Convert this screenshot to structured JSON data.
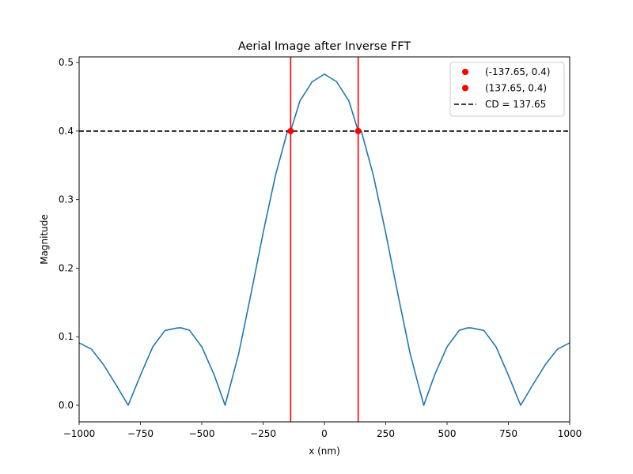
{
  "chart_data": {
    "type": "line",
    "title": "Aerial Image after Inverse FFT",
    "xlabel": "x (nm)",
    "ylabel": "Magnitude",
    "xlim": [
      -1000,
      1000
    ],
    "ylim": [
      -0.0242,
      0.5082
    ],
    "xticks": [
      -1000,
      -750,
      -500,
      -250,
      0,
      250,
      500,
      750,
      1000
    ],
    "xtick_labels": [
      "−1000",
      "−750",
      "−500",
      "−250",
      "0",
      "250",
      "500",
      "750",
      "1000"
    ],
    "yticks": [
      0.0,
      0.1,
      0.2,
      0.3,
      0.4,
      0.5
    ],
    "ytick_labels": [
      "0.0",
      "0.1",
      "0.2",
      "0.3",
      "0.4",
      "0.5"
    ],
    "grid": false,
    "legend_position": "top-right",
    "series": [
      {
        "kind": "line",
        "color": "#1f77b4",
        "x": [
          -1000,
          -950,
          -900,
          -850,
          -800,
          -750,
          -700,
          -650,
          -600,
          -585,
          -550,
          -500,
          -450,
          -405,
          -350,
          -300,
          -250,
          -200,
          -150,
          -137.65,
          -100,
          -50,
          0,
          50,
          100,
          137.65,
          150,
          200,
          250,
          300,
          350,
          405,
          450,
          500,
          550,
          585,
          600,
          650,
          700,
          750,
          800,
          850,
          900,
          950,
          1000
        ],
        "y": [
          0.091,
          0.0819,
          0.0589,
          0.0301,
          0.0,
          0.0438,
          0.0851,
          0.1091,
          0.1127,
          0.113,
          0.1094,
          0.0853,
          0.0449,
          0.0,
          0.0745,
          0.1612,
          0.2512,
          0.3347,
          0.4006,
          0.4,
          0.4438,
          0.4719,
          0.483,
          0.4719,
          0.4438,
          0.4,
          0.4006,
          0.3347,
          0.2512,
          0.1612,
          0.0745,
          0.0,
          0.0449,
          0.0853,
          0.1094,
          0.113,
          0.1127,
          0.1091,
          0.0851,
          0.0438,
          0.0,
          0.0301,
          0.0589,
          0.0819,
          0.091
        ]
      },
      {
        "kind": "points",
        "name": "(-137.65, 0.4)",
        "color": "#ff0000",
        "x": [
          -137.65
        ],
        "y": [
          0.4
        ]
      },
      {
        "kind": "points",
        "name": "(137.65, 0.4)",
        "color": "#ff0000",
        "x": [
          137.65
        ],
        "y": [
          0.4
        ]
      },
      {
        "kind": "hline",
        "name": "CD = 137.65",
        "color": "#000000",
        "y": 0.4,
        "dashed": true
      },
      {
        "kind": "vline",
        "color": "#ff0000",
        "x": -137.65
      },
      {
        "kind": "vline",
        "color": "#ff0000",
        "x": 137.65
      }
    ]
  }
}
